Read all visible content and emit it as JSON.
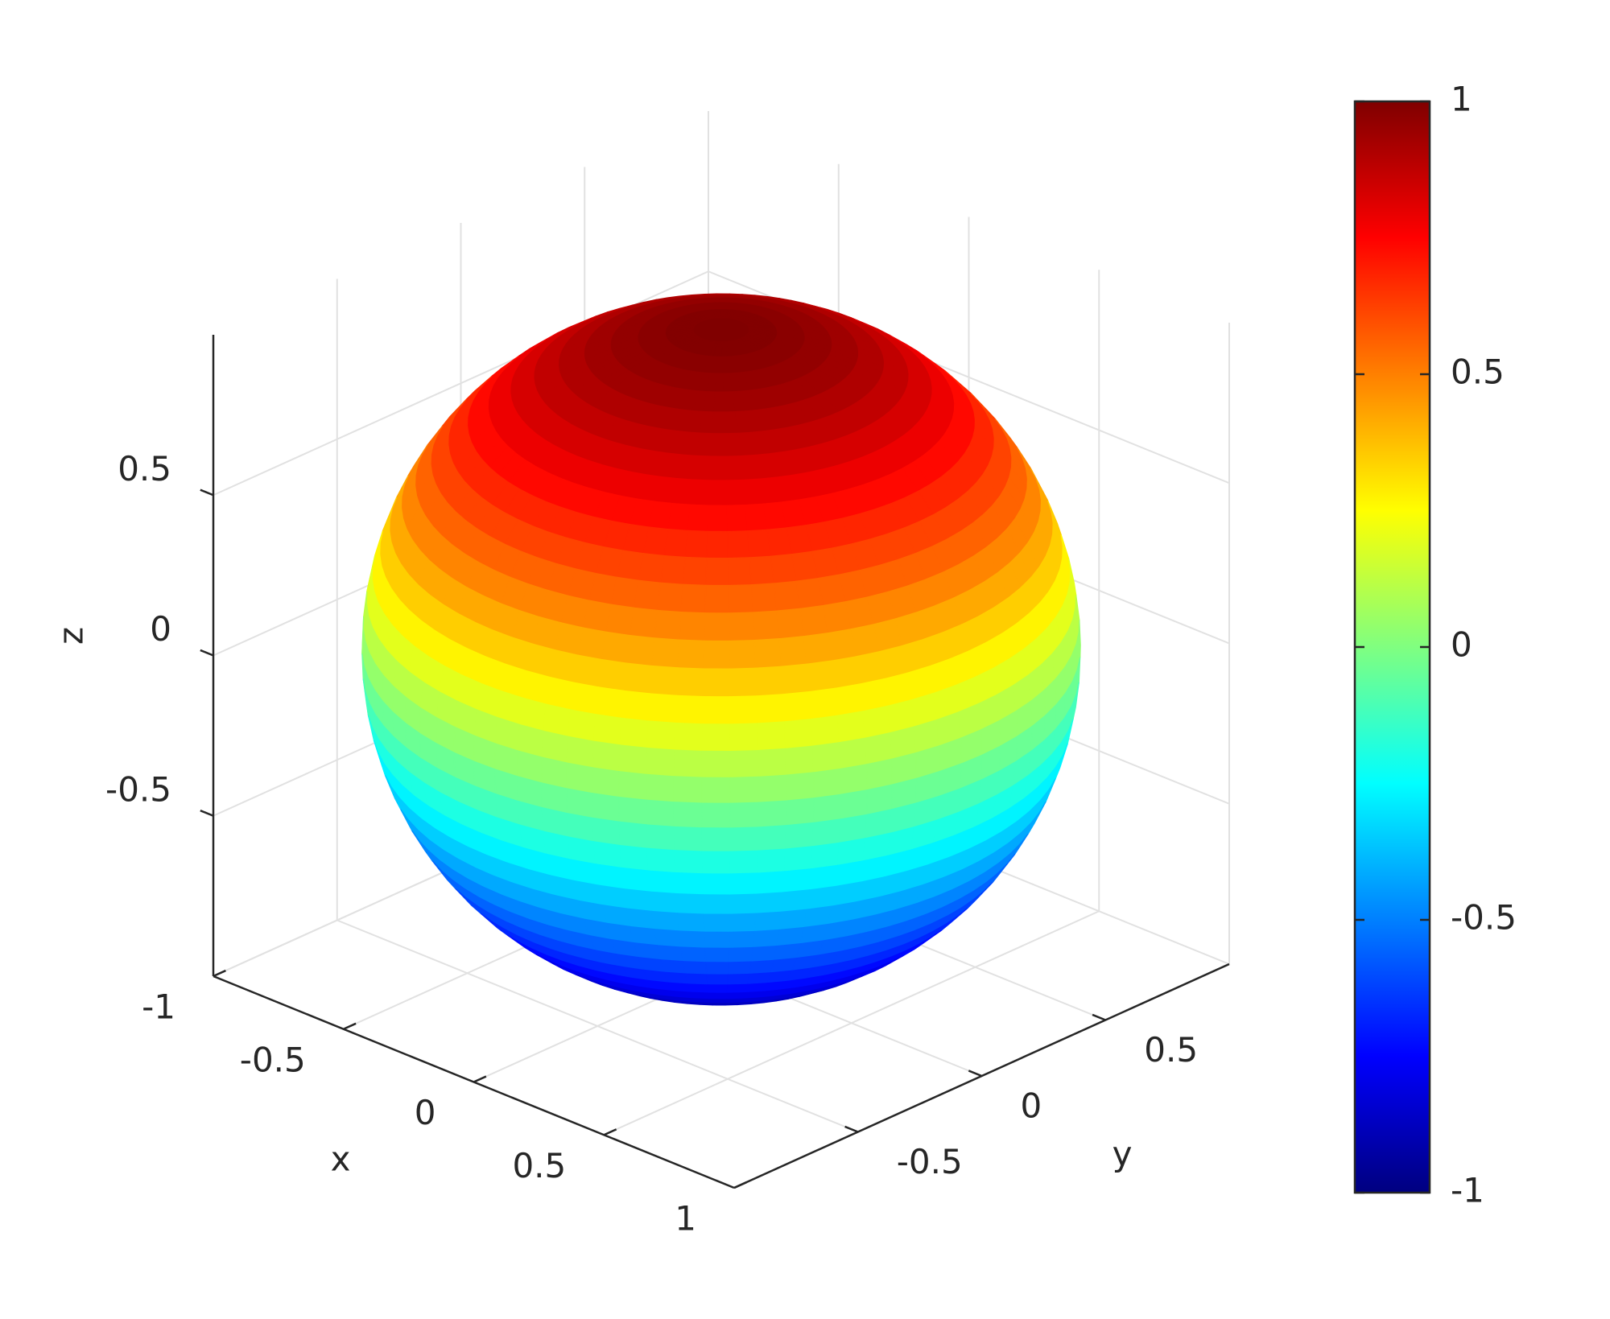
{
  "chart_data": {
    "type": "surface",
    "shape": "sphere",
    "radius": 1,
    "xlabel": "x",
    "ylabel": "y",
    "zlabel": "z",
    "xlim": [
      -1,
      1
    ],
    "ylim": [
      -1,
      1
    ],
    "zlim": [
      -1,
      1
    ],
    "xticks": [
      -1,
      -0.5,
      0,
      0.5,
      1
    ],
    "yticks": [
      -0.5,
      0,
      0.5
    ],
    "zticks": [
      -0.5,
      0,
      0.5
    ],
    "grid": true,
    "colormap": "jet",
    "clim": [
      -1,
      1
    ],
    "colorbar": {
      "ticks": [
        -1,
        -0.5,
        0,
        0.5,
        1
      ]
    }
  }
}
